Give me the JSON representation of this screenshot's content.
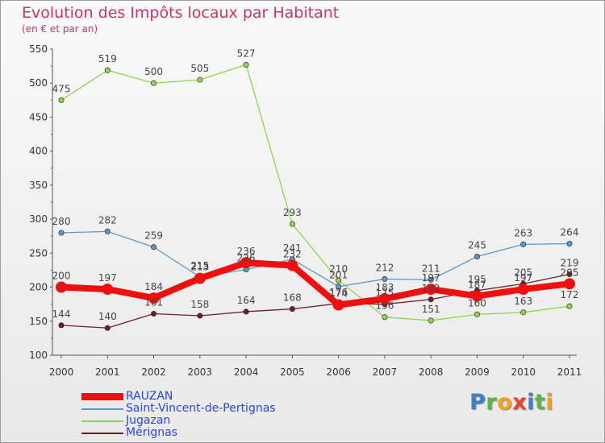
{
  "header": {
    "title": "Evolution des Impôts locaux par Habitant",
    "subtitle": "(en € et par an)"
  },
  "logo": {
    "text": "Proxiti"
  },
  "chart_data": {
    "type": "line",
    "title": "Evolution des Impôts locaux par Habitant",
    "subtitle": "(en € et par an)",
    "xlabel": "",
    "ylabel": "",
    "ylim": [
      100,
      550
    ],
    "yticks": [
      100,
      150,
      200,
      250,
      300,
      350,
      400,
      450,
      500,
      550
    ],
    "grid": false,
    "legend_position": "bottom-left",
    "categories": [
      "2000",
      "2001",
      "2002",
      "2003",
      "2004",
      "2005",
      "2006",
      "2007",
      "2008",
      "2009",
      "2010",
      "2011"
    ],
    "series": [
      {
        "name": "Jugazan",
        "color": "#8fd64a",
        "values": [
          475,
          519,
          500,
          505,
          527,
          293,
          210,
          156,
          151,
          160,
          163,
          172
        ]
      },
      {
        "name": "Saint-Vincent-de-Pertignas",
        "color": "#5b97c9",
        "values": [
          280,
          282,
          259,
          215,
          226,
          241,
          201,
          212,
          211,
          245,
          263,
          264
        ]
      },
      {
        "name": "Mérignas",
        "color": "#6e1f24",
        "values": [
          144,
          140,
          161,
          158,
          164,
          168,
          176,
          175,
          182,
          195,
          205,
          219
        ]
      },
      {
        "name": "RAUZAN",
        "color": "#ef0f0f",
        "values": [
          200,
          197,
          184,
          213,
          236,
          232,
          174,
          183,
          197,
          187,
          197,
          205
        ]
      }
    ]
  }
}
